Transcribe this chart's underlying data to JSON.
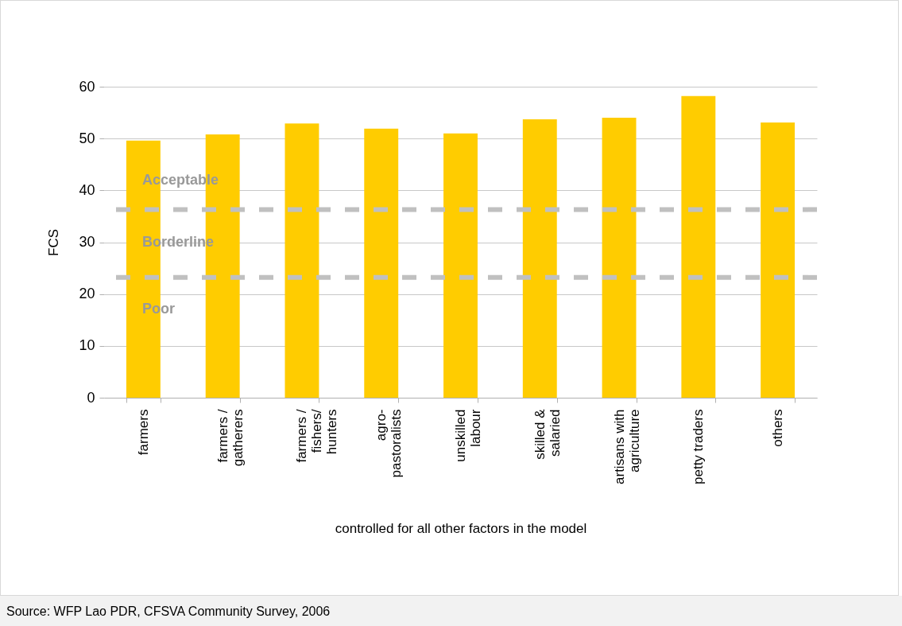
{
  "chart_data": {
    "type": "bar",
    "xlabel": "controlled for all other factors in the model",
    "ylabel": "FCS",
    "categories": [
      "farmers",
      "farmers / gatherers",
      "farmers / fishers/ hunters",
      "agro-pastoralists",
      "unskilled labour",
      "skilled & salaried",
      "artisans with agriculture",
      "petty traders",
      "others"
    ],
    "values": [
      49.6,
      50.8,
      52.9,
      51.9,
      51.0,
      53.7,
      54.0,
      58.2,
      53.1
    ],
    "color": "#ffcc00",
    "ylim": [
      0,
      60
    ],
    "yticks": [
      0,
      10,
      20,
      30,
      40,
      50,
      60
    ],
    "grid": "y",
    "ref_lines": [
      {
        "axis": "y",
        "value": 36.3,
        "color": "#c0c0c0",
        "line_style": "dashed"
      },
      {
        "axis": "y",
        "value": 23.2,
        "color": "#c0c0c0",
        "line_style": "dashed"
      }
    ],
    "annotations": [
      "Acceptable",
      "Borderline",
      "Poor",
      "Source: WFP Lao PDR, CFSVA Community Survey, 2006"
    ]
  }
}
